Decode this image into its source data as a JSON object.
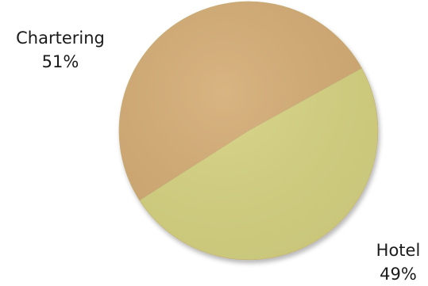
{
  "chart_data": {
    "type": "pie",
    "title": "",
    "categories": [
      "Chartering",
      "Hotel"
    ],
    "values": [
      51,
      49
    ],
    "value_labels": [
      "51%",
      "49%"
    ],
    "colors": [
      "#D4AC74",
      "#D6D381"
    ],
    "start_angle_deg": 29,
    "direction": "counterclockwise",
    "legend": "none"
  }
}
